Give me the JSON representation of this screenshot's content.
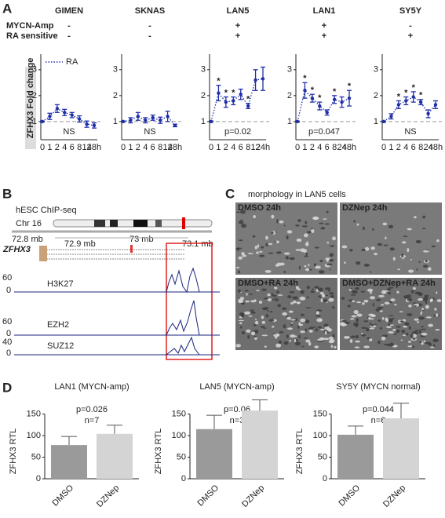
{
  "panels": {
    "A": {
      "letter": "A",
      "row_labels": [
        "MYCN-Amp",
        "RA sensitive"
      ],
      "ylabel": "ZFHX3 Fold change",
      "legend": "RA",
      "ylim": [
        0.3,
        3.6
      ],
      "yticks": [
        1,
        2,
        3
      ],
      "baseline": 1,
      "color": "#1f2fa8",
      "star_color": "#e02020",
      "charts": [
        {
          "name": "GIMEN",
          "rows": [
            "-",
            "-"
          ],
          "categories": [
            "0",
            "1",
            "2",
            "4",
            "6",
            "8",
            "12",
            "48h"
          ],
          "values": [
            1,
            1.2,
            1.5,
            1.35,
            1.25,
            1.1,
            0.9,
            0.85
          ],
          "errors": [
            0.02,
            0.12,
            0.15,
            0.12,
            0.1,
            0.12,
            0.12,
            0.1
          ],
          "stars": [
            null,
            null,
            null,
            null,
            null,
            null,
            null,
            null
          ],
          "stat": "NS"
        },
        {
          "name": "SKNAS",
          "rows": [
            "-",
            "-"
          ],
          "categories": [
            "0",
            "1",
            "2",
            "4",
            "6",
            "8",
            "12",
            "48h"
          ],
          "values": [
            1,
            1.05,
            1.2,
            1.05,
            1.15,
            1.05,
            1.2,
            0.85
          ],
          "errors": [
            0.02,
            0.1,
            0.15,
            0.1,
            0.1,
            0.12,
            0.2,
            0.05
          ],
          "stars": [
            null,
            null,
            null,
            null,
            null,
            null,
            null,
            null
          ],
          "stat": "NS"
        },
        {
          "name": "LAN5",
          "rows": [
            "+",
            "+"
          ],
          "categories": [
            "0",
            "1",
            "2",
            "4",
            "6",
            "8",
            "12",
            "24h"
          ],
          "values": [
            1,
            2.1,
            1.75,
            1.8,
            2.05,
            1.6,
            2.6,
            2.65
          ],
          "errors": [
            0.02,
            0.3,
            0.2,
            0.15,
            0.2,
            0.1,
            0.4,
            0.45
          ],
          "stars": [
            null,
            "*",
            "*",
            "*",
            null,
            "*",
            null,
            null
          ],
          "stat": "p=0.02"
        },
        {
          "name": "LAN1",
          "rows": [
            "+",
            "+"
          ],
          "categories": [
            "0",
            "1",
            "2",
            "4",
            "6",
            "8",
            "24",
            "48h"
          ],
          "values": [
            1,
            2.2,
            1.9,
            1.6,
            1.35,
            1.85,
            1.75,
            1.9
          ],
          "errors": [
            0.02,
            0.3,
            0.15,
            0.15,
            0.1,
            0.15,
            0.2,
            0.3
          ],
          "stars": [
            null,
            "*",
            "*",
            "*",
            null,
            "*",
            null,
            "*"
          ],
          "stat": "p=0.047"
        },
        {
          "name": "SY5Y",
          "rows": [
            "-",
            "+"
          ],
          "categories": [
            "0",
            "1",
            "2",
            "4",
            "6",
            "8",
            "24",
            "48h"
          ],
          "values": [
            1,
            1.2,
            1.65,
            1.8,
            1.95,
            1.75,
            1.3,
            1.65
          ],
          "errors": [
            0.02,
            0.1,
            0.15,
            0.15,
            0.2,
            0.1,
            0.15,
            0.15
          ],
          "stars": [
            null,
            null,
            "*",
            "*",
            "*",
            "*",
            null,
            null
          ],
          "stat": "NS"
        }
      ]
    },
    "B": {
      "letter": "B",
      "title": "hESC ChIP-seq",
      "chromosome": "Chr 16",
      "coords": [
        "72.8 mb",
        "73 mb"
      ],
      "gene_coords": [
        "72.9 mb",
        "73.1 mb"
      ],
      "gene": "ZFHX3",
      "tracks": [
        {
          "name": "H3K27",
          "max": 60,
          "min": 0
        },
        {
          "name": "EZH2",
          "max": 60,
          "min": 0
        },
        {
          "name": "SUZ12",
          "max": 40,
          "min": 0
        }
      ]
    },
    "C": {
      "letter": "C",
      "title": "morphology in LAN5 cells",
      "images": [
        "DMSO 24h",
        "DZNep 24h",
        "DMSO+RA 24h",
        "DMSO+DZNep+RA 24h"
      ]
    },
    "D": {
      "letter": "D",
      "ylabel": "ZFHX3 RTL",
      "ylim": [
        0,
        200
      ],
      "yticks": [
        0,
        50,
        100,
        150
      ],
      "categories": [
        "DMSO",
        "DZNep"
      ],
      "colors": [
        "#9a9a9a",
        "#d4d4d4"
      ],
      "charts": [
        {
          "title": "LAN1 (MYCN-amp)",
          "p": "p=0.026",
          "n": "n=7",
          "values": [
            78,
            104
          ],
          "errors": [
            20,
            20
          ]
        },
        {
          "title": "LAN5 (MYCN-amp)",
          "p": "p=0.06",
          "n": "n=3",
          "values": [
            115,
            158
          ],
          "errors": [
            32,
            25
          ]
        },
        {
          "title": "SY5Y (MYCN normal)",
          "p": "p=0.044",
          "n": "n=6",
          "values": [
            102,
            140
          ],
          "errors": [
            20,
            35
          ]
        }
      ]
    }
  }
}
